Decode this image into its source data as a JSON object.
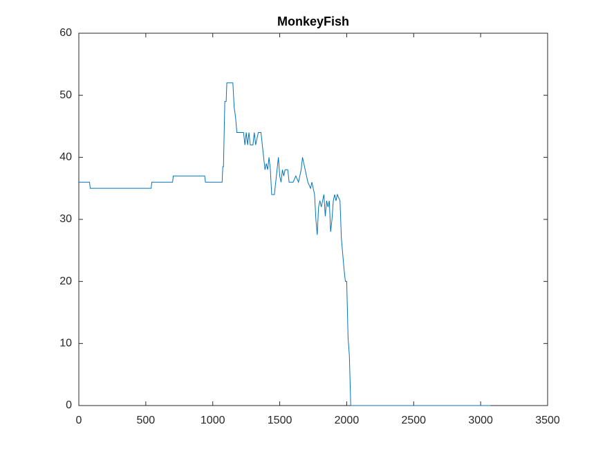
{
  "chart_data": {
    "type": "line",
    "title": "MonkeyFish",
    "x": [
      0,
      80,
      85,
      540,
      545,
      700,
      705,
      940,
      945,
      1070,
      1075,
      1080,
      1090,
      1100,
      1105,
      1150,
      1160,
      1170,
      1180,
      1230,
      1240,
      1250,
      1260,
      1270,
      1280,
      1300,
      1310,
      1320,
      1340,
      1360,
      1370,
      1380,
      1390,
      1400,
      1410,
      1420,
      1430,
      1440,
      1460,
      1470,
      1480,
      1490,
      1500,
      1510,
      1520,
      1530,
      1540,
      1560,
      1570,
      1600,
      1620,
      1640,
      1660,
      1670,
      1680,
      1690,
      1700,
      1710,
      1730,
      1740,
      1760,
      1770,
      1780,
      1790,
      1800,
      1810,
      1820,
      1830,
      1840,
      1850,
      1860,
      1870,
      1880,
      1890,
      1900,
      1910,
      1920,
      1930,
      1950,
      1960,
      1980,
      1990,
      2000,
      2010,
      2020,
      2030,
      3075
    ],
    "series": [
      {
        "name": "MonkeyFish",
        "color": "#0072bd",
        "values": [
          36,
          36,
          35,
          35,
          36,
          36,
          37,
          37,
          36,
          36,
          38.5,
          38.5,
          49,
          49,
          52,
          52,
          48,
          46.5,
          44,
          44,
          42,
          44,
          42,
          44,
          42,
          42,
          44,
          42,
          44,
          44,
          42,
          40,
          38,
          39,
          38,
          40,
          38,
          34,
          34,
          36,
          38,
          40,
          37,
          36,
          38,
          37,
          38,
          38,
          36,
          36,
          37,
          36,
          38,
          40,
          39,
          38,
          37,
          36,
          35,
          36,
          34,
          30,
          27.5,
          32,
          33,
          32,
          33,
          34,
          30.5,
          33,
          32,
          33,
          28,
          30,
          33,
          34,
          33,
          34,
          33,
          27,
          22,
          20,
          20,
          11,
          8,
          0,
          0
        ]
      }
    ],
    "xlim": [
      0,
      3500
    ],
    "xticks": [
      0,
      500,
      1000,
      1500,
      2000,
      2500,
      3000,
      3500
    ],
    "ylim": [
      0,
      60
    ],
    "yticks": [
      0,
      10,
      20,
      30,
      40,
      50,
      60
    ]
  }
}
